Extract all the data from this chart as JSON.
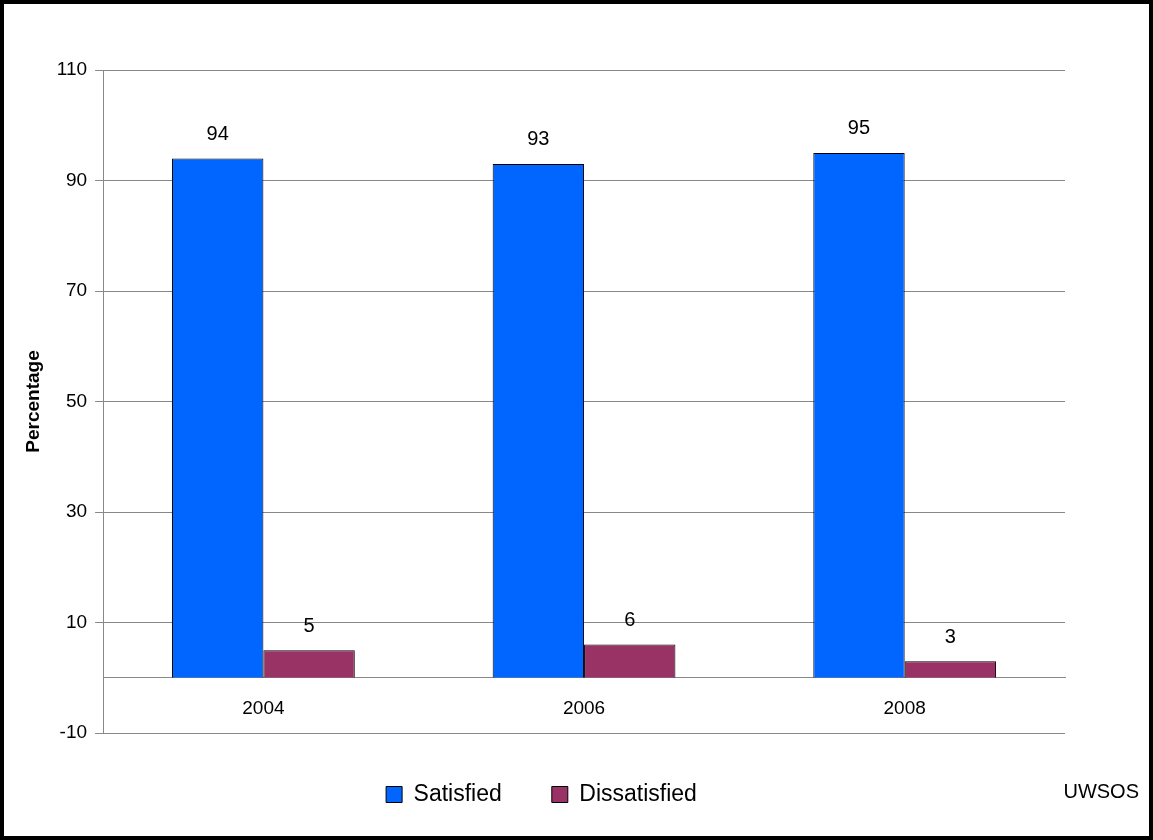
{
  "chart_data": {
    "type": "bar",
    "ylabel": "Percentage",
    "categories": [
      "2004",
      "2006",
      "2008"
    ],
    "series": [
      {
        "name": "Satisfied",
        "color": "#0066ff",
        "values": [
          94,
          93,
          95
        ]
      },
      {
        "name": "Dissatisfied",
        "color": "#993366",
        "values": [
          5,
          6,
          3
        ]
      }
    ],
    "ylim": [
      -10,
      110
    ],
    "yticks": [
      -10,
      10,
      30,
      50,
      70,
      90,
      110
    ],
    "grid": "y",
    "legend": "bottom",
    "data_labels": true,
    "annotations": [
      "UWSOS"
    ]
  }
}
